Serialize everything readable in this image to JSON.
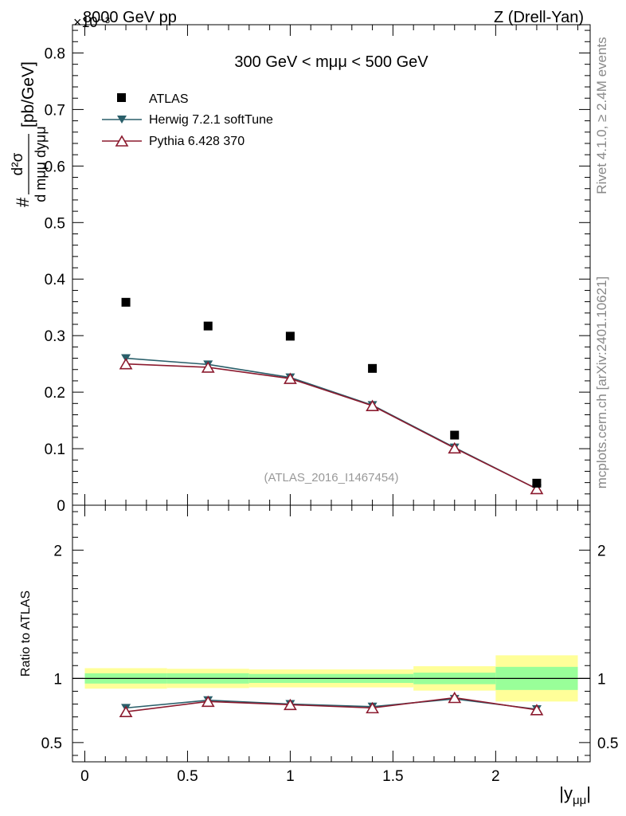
{
  "header": {
    "left": "8000 GeV pp",
    "right": "Z (Drell-Yan)",
    "exponent_label": "×10⁻³"
  },
  "side_labels": {
    "rivet": "Rivet 4.1.0, ≥ 2.4M events",
    "mcplots": "mcplots.cern.ch [arXiv:2401.10621]"
  },
  "colors": {
    "data": "#000000",
    "herwig": "#2a5f6a",
    "pythia": "#8b1a2e",
    "band_inner": "#99ff99",
    "band_outer": "#ffff99"
  },
  "chart_data": [
    {
      "type": "scatter",
      "panel": "main",
      "title": "300 GeV < mμμ < 500 GeV",
      "watermark": "(ATLAS_2016_I1467454)",
      "ylabel": "d²σ / d mμμ dyμμ [pb/GeV]",
      "ylabel_parts": {
        "hash": "#",
        "num": "d²σ",
        "den": "d mμμ dyμμ",
        "unit": "[pb/GeV]"
      },
      "y_scale_factor": "×10⁻³",
      "xlim": [
        -0.06,
        2.46
      ],
      "ylim": [
        0,
        0.85
      ],
      "yticks": [
        0,
        0.1,
        0.2,
        0.3,
        0.4,
        0.5,
        0.6,
        0.7,
        0.8
      ],
      "ytick_labels": [
        "0",
        "0.1",
        "0.2",
        "0.3",
        "0.4",
        "0.5",
        "0.6",
        "0.7",
        "0.8"
      ],
      "legend_position": "top-left",
      "x": [
        0.2,
        0.6,
        1.0,
        1.4,
        1.8,
        2.2
      ],
      "series": [
        {
          "name": "ATLAS",
          "marker": "filled-square",
          "values": [
            0.359,
            0.317,
            0.299,
            0.242,
            0.124,
            0.039
          ]
        },
        {
          "name": "Herwig 7.2.1 softTune",
          "marker": "filled-triangle-down",
          "values": [
            0.26,
            0.249,
            0.226,
            0.177,
            0.102,
            0.029
          ]
        },
        {
          "name": "Pythia 6.428 370",
          "marker": "open-triangle-up",
          "values": [
            0.25,
            0.244,
            0.224,
            0.176,
            0.101,
            0.029
          ]
        }
      ]
    },
    {
      "type": "line",
      "panel": "ratio",
      "ylabel": "Ratio to ATLAS",
      "xlabel": "|yμμ|",
      "xlabel_parts": {
        "main": "|y",
        "sub": "μμ",
        "end": "|"
      },
      "xlim": [
        -0.06,
        2.46
      ],
      "ylim": [
        0.35,
        2.35
      ],
      "xticks": [
        0,
        0.5,
        1,
        1.5,
        2
      ],
      "xtick_labels": [
        "0",
        "0.5",
        "1",
        "1.5",
        "2"
      ],
      "yticks": [
        0.5,
        1,
        2
      ],
      "ytick_labels": [
        "0.5",
        "1",
        "2"
      ],
      "bins": [
        [
          0,
          0.4
        ],
        [
          0.4,
          0.8
        ],
        [
          0.8,
          1.2
        ],
        [
          1.2,
          1.6
        ],
        [
          1.6,
          2.0
        ],
        [
          2.0,
          2.4
        ]
      ],
      "band_inner": [
        [
          0.96,
          1.04
        ],
        [
          0.96,
          1.04
        ],
        [
          0.965,
          1.035
        ],
        [
          0.965,
          1.035
        ],
        [
          0.955,
          1.045
        ],
        [
          0.91,
          1.09
        ]
      ],
      "band_outer": [
        [
          0.92,
          1.08
        ],
        [
          0.925,
          1.075
        ],
        [
          0.93,
          1.07
        ],
        [
          0.93,
          1.07
        ],
        [
          0.905,
          1.095
        ],
        [
          0.82,
          1.18
        ]
      ],
      "x": [
        0.2,
        0.6,
        1.0,
        1.4,
        1.8,
        2.2
      ],
      "series": [
        {
          "name": "Herwig 7.2.1 softTune",
          "values": [
            0.77,
            0.83,
            0.8,
            0.78,
            0.84,
            0.76
          ]
        },
        {
          "name": "Pythia 6.428 370",
          "values": [
            0.74,
            0.82,
            0.795,
            0.77,
            0.85,
            0.755
          ]
        }
      ]
    }
  ]
}
